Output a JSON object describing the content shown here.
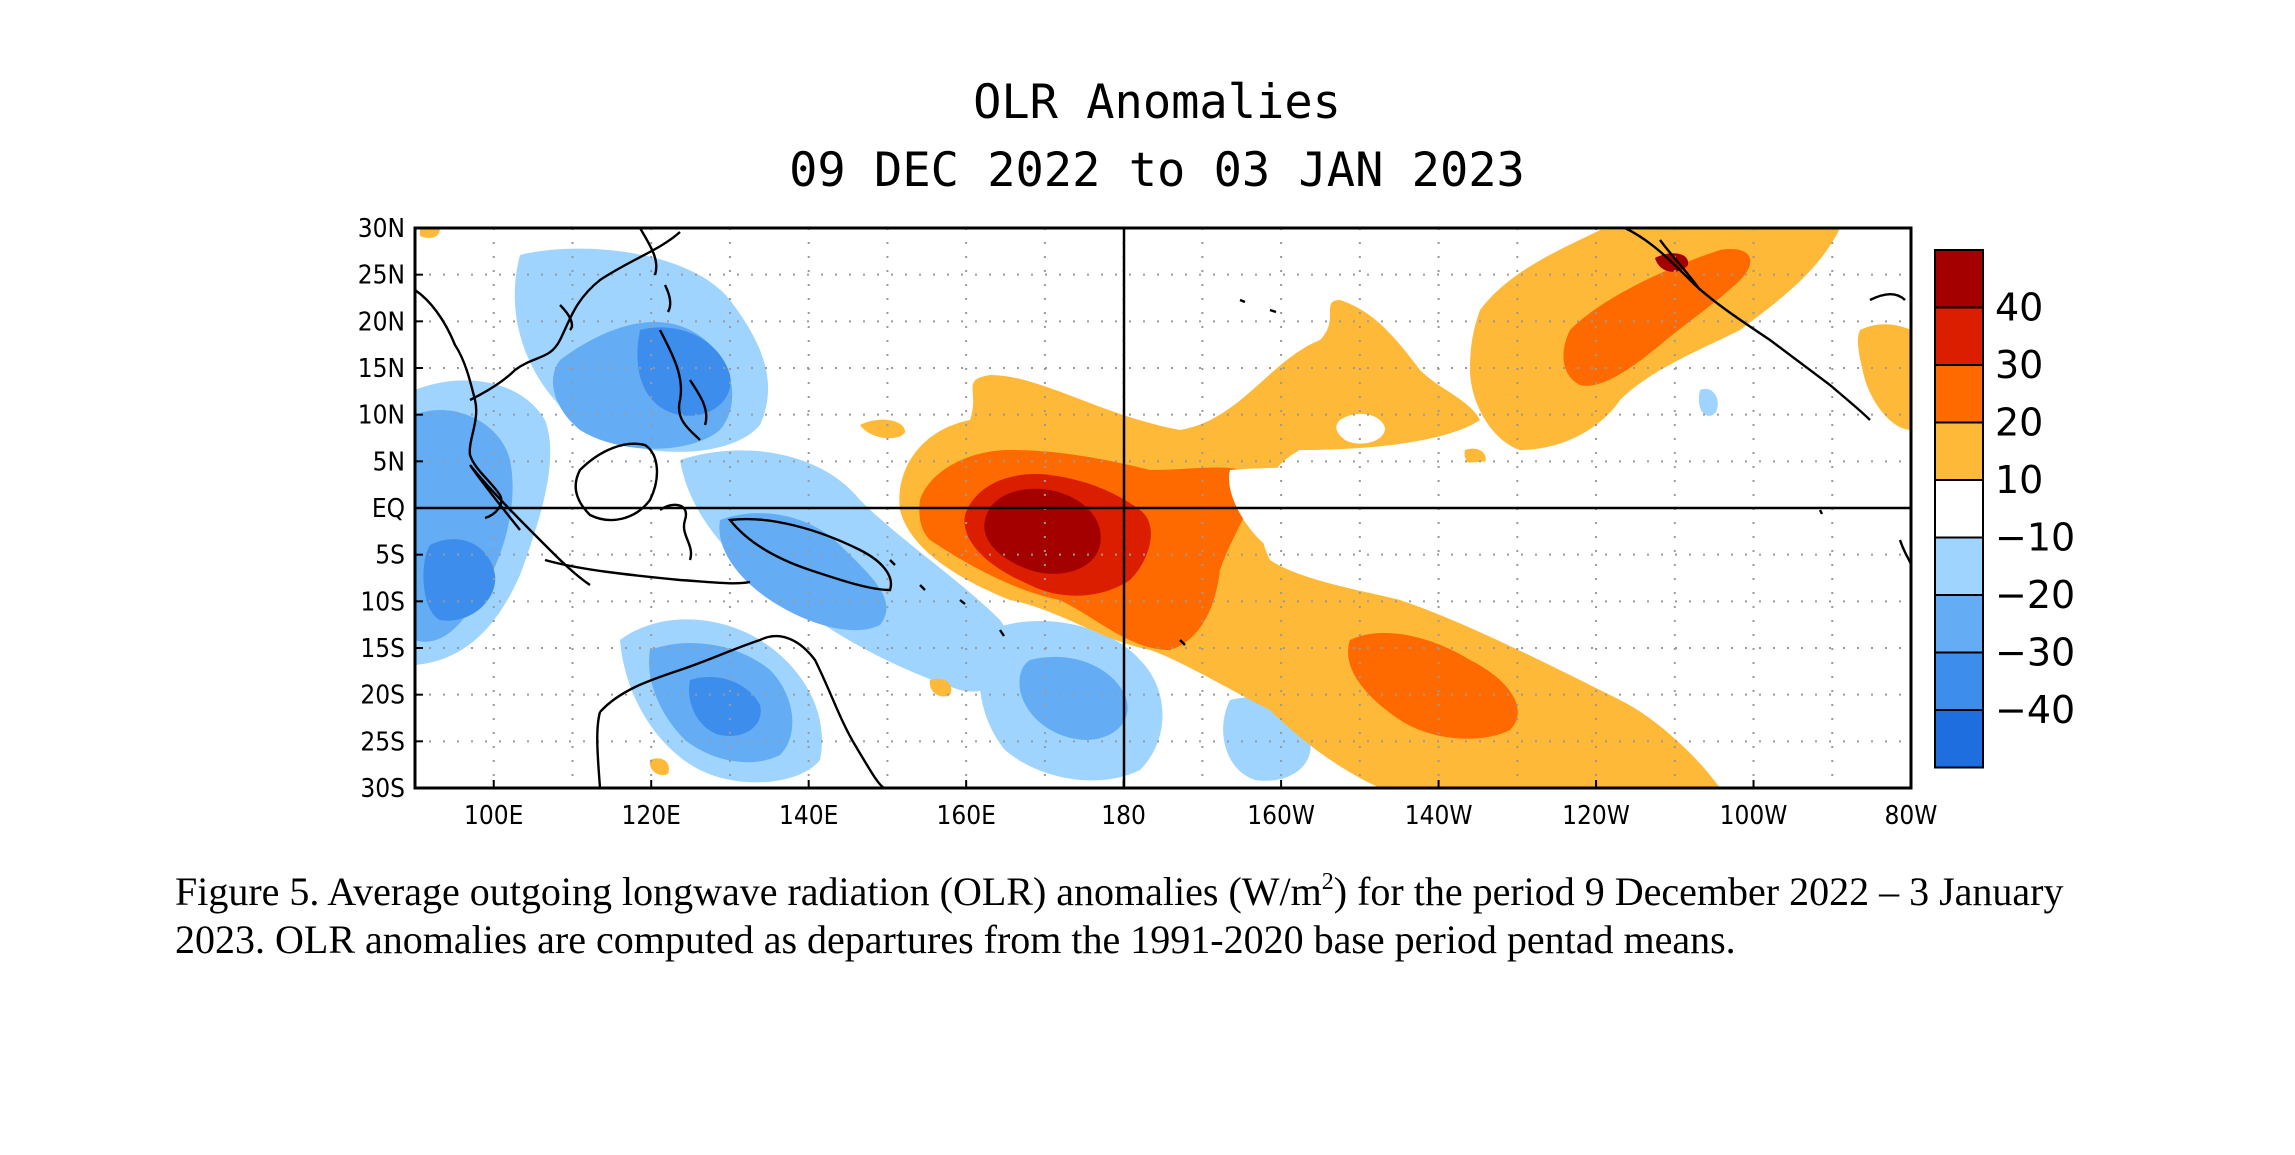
{
  "chart_data": {
    "type": "heatmap",
    "title": "OLR Anomalies",
    "subtitle": "09 DEC 2022 to 03 JAN 2023",
    "x_ticks": [
      "100E",
      "120E",
      "140E",
      "160E",
      "180",
      "160W",
      "140W",
      "120W",
      "100W",
      "80W"
    ],
    "y_ticks": [
      "30N",
      "25N",
      "20N",
      "15N",
      "10N",
      "5N",
      "EQ",
      "5S",
      "10S",
      "15S",
      "20S",
      "25S",
      "30S"
    ],
    "x_range_deg_east": [
      90,
      280
    ],
    "y_range_deg": [
      -30,
      30
    ],
    "grid": "dotted",
    "colorbar": {
      "position": "right",
      "labels": [
        "40",
        "30",
        "20",
        "10",
        "−10",
        "−20",
        "−30",
        "−40"
      ],
      "colors": [
        "#a50000",
        "#dc1e00",
        "#ff6a00",
        "#ffb938",
        "#ffffff",
        "#9fd4ff",
        "#64adf5",
        "#3d8ded",
        "#1f6ee0"
      ]
    },
    "fields": [
      {
        "name": "central Pacific positive anomaly core",
        "lon": 172,
        "lat": -2,
        "value": 45
      },
      {
        "name": "dateline positive band",
        "lon": 180,
        "lat": 0,
        "value": 30
      },
      {
        "name": "southeast Pacific positive band",
        "lon": 222,
        "lat": -17,
        "value": 25
      },
      {
        "name": "northeast Pacific positive band",
        "lon": 245,
        "lat": 16,
        "value": 22
      },
      {
        "name": "Indian Ocean negative anomaly",
        "lon": 95,
        "lat": -6,
        "value": -25
      },
      {
        "name": "Philippine Sea negative anomaly",
        "lon": 125,
        "lat": 15,
        "value": -25
      },
      {
        "name": "Maritime Continent negative anomaly",
        "lon": 135,
        "lat": -10,
        "value": -20
      },
      {
        "name": "northern Australia negative anomaly",
        "lon": 130,
        "lat": -20,
        "value": -35
      },
      {
        "name": "southwest Pacific negative anomaly",
        "lon": 168,
        "lat": -20,
        "value": -25
      }
    ]
  },
  "caption": {
    "before_sup": "Figure 5. Average outgoing longwave radiation (OLR) anomalies (W/m",
    "sup": "2",
    "after_sup": ") for the period 9 December 2022 – 3 January 2023.  OLR anomalies are computed as departures from the 1991-2020 base period pentad means."
  }
}
